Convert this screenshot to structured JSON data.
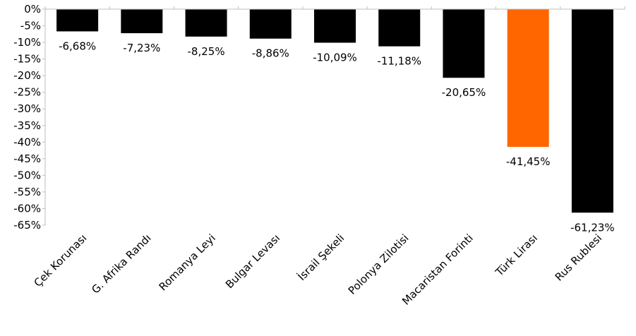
{
  "chart_data": {
    "type": "bar",
    "title": "",
    "xlabel": "",
    "ylabel": "",
    "ylim": [
      -65,
      0
    ],
    "yticks": [
      0,
      -5,
      -10,
      -15,
      -20,
      -25,
      -30,
      -35,
      -40,
      -45,
      -50,
      -55,
      -60,
      -65
    ],
    "ytick_labels": [
      "0%",
      "-5%",
      "-10%",
      "-15%",
      "-20%",
      "-25%",
      "-30%",
      "-35%",
      "-40%",
      "-45%",
      "-50%",
      "-55%",
      "-60%",
      "-65%"
    ],
    "grid": false,
    "categories": [
      "Çek Korunası",
      "G. Afrika Randı",
      "Romanya Leyi",
      "Bulgar Levası",
      "İsrail Şekeli",
      "Polonya Zilotisi",
      "Macaristan Forinti",
      "Türk Lirası",
      "Rus Rublesi"
    ],
    "values": [
      -6.68,
      -7.23,
      -8.25,
      -8.86,
      -10.09,
      -11.18,
      -20.65,
      -41.45,
      -61.23
    ],
    "data_labels": [
      "-6,68%",
      "-7,23%",
      "-8,25%",
      "-8,86%",
      "-10,09%",
      "-11,18%",
      "-20,65%",
      "-41,45%",
      "-61,23%"
    ],
    "colors": [
      "#000000",
      "#000000",
      "#000000",
      "#000000",
      "#000000",
      "#000000",
      "#000000",
      "#ff6600",
      "#000000"
    ]
  }
}
